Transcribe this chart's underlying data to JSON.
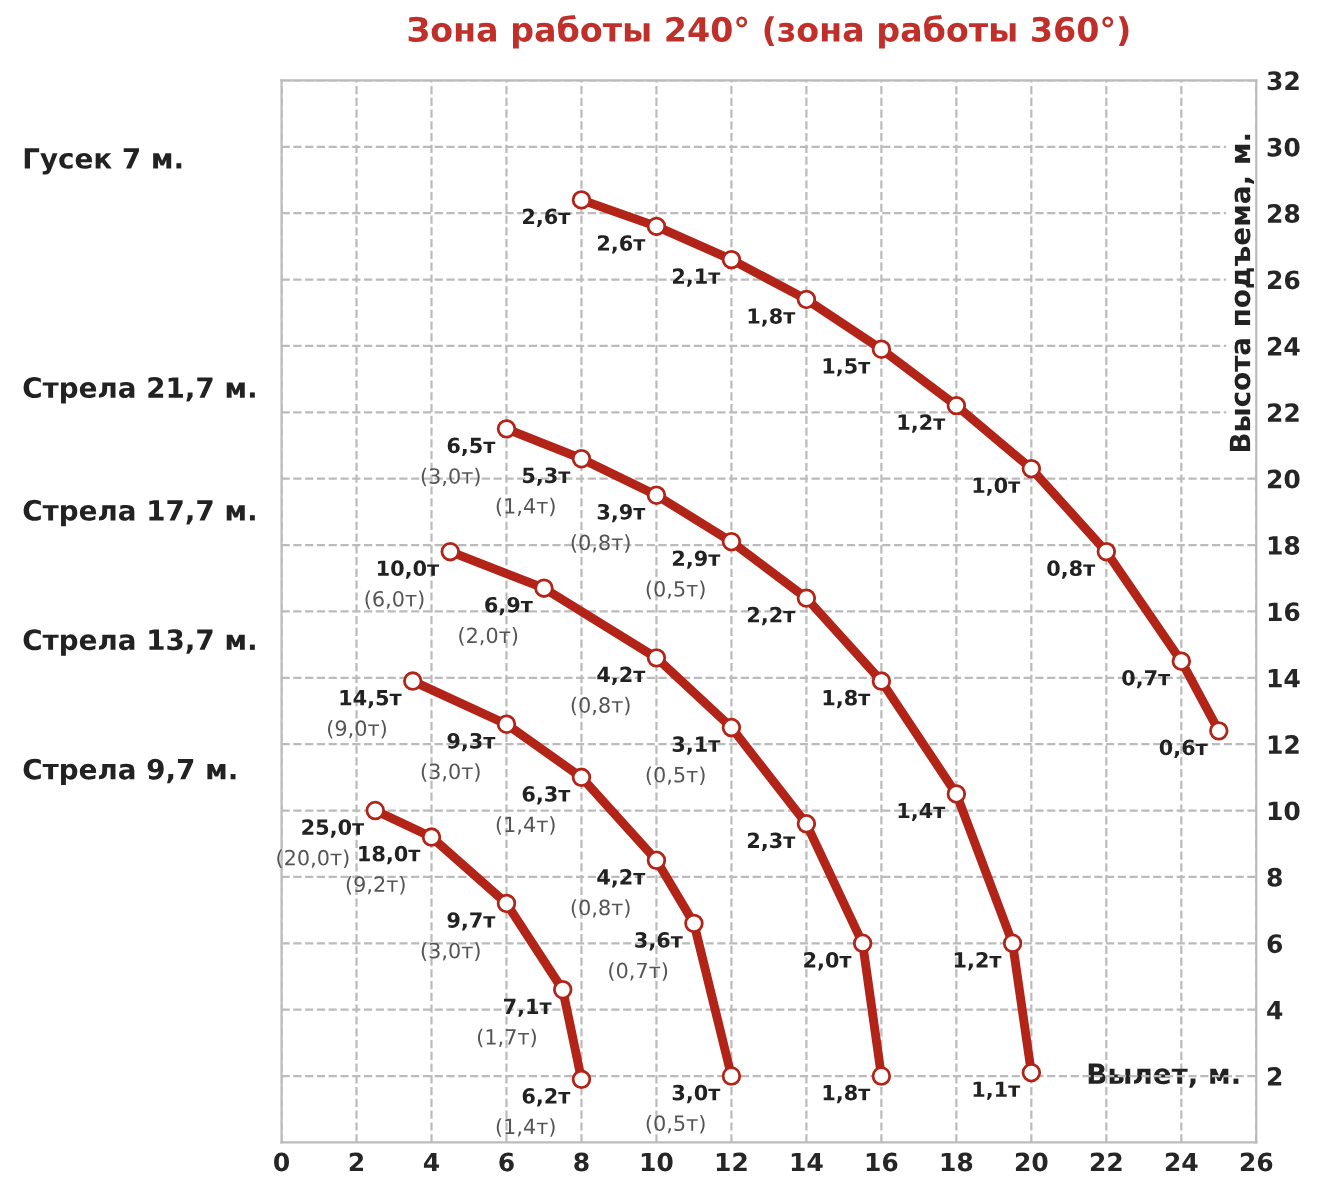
{
  "chart_data": {
    "type": "line",
    "title": "Зона работы 240° (зона работы 360°)",
    "xlabel": "Вылет, м.",
    "ylabel": "Высота подъема, м.",
    "xlim": [
      0,
      26
    ],
    "xticks": [
      0,
      2,
      4,
      6,
      8,
      10,
      12,
      14,
      16,
      18,
      20,
      22,
      24,
      26
    ],
    "ylim": [
      0,
      32
    ],
    "yticks": [
      2,
      4,
      6,
      8,
      10,
      12,
      14,
      16,
      18,
      20,
      22,
      24,
      26,
      28,
      30,
      32
    ],
    "grid": true,
    "marker": "circle",
    "line_style": "solid",
    "legend": false,
    "series": [
      {
        "color": "#b22418",
        "x": [
          8,
          10,
          12,
          14,
          16,
          18,
          20,
          22,
          24,
          25
        ],
        "values": [
          28.4,
          27.6,
          26.6,
          25.4,
          23.9,
          22.2,
          20.3,
          17.8,
          14.5,
          12.4
        ]
      },
      {
        "color": "#b22418",
        "x": [
          6,
          8,
          10,
          12,
          14,
          16,
          18,
          19.5,
          20
        ],
        "values": [
          21.5,
          20.6,
          19.5,
          18.1,
          16.4,
          13.9,
          10.5,
          6.0,
          2.1
        ]
      },
      {
        "color": "#b22418",
        "x": [
          4.5,
          7,
          10,
          12,
          14,
          15.5,
          16
        ],
        "values": [
          17.8,
          16.7,
          14.6,
          12.5,
          9.6,
          6.0,
          2.0
        ]
      },
      {
        "color": "#b22418",
        "x": [
          3.5,
          6,
          8,
          10,
          11,
          12
        ],
        "values": [
          13.9,
          12.6,
          11.0,
          8.5,
          6.6,
          2.0
        ]
      },
      {
        "color": "#b22418",
        "x": [
          2.5,
          4,
          6,
          7.5,
          8
        ],
        "values": [
          10.0,
          9.2,
          7.2,
          4.6,
          1.9
        ]
      }
    ],
    "annotations": [
      "Гусек 7 м.",
      "Стрела 21,7 м.",
      "Стрела 17,7 м.",
      "Стрела 13,7 м.",
      "Стрела 9,7 м.",
      {
        "text": "2,6т",
        "x": 8,
        "y": 28.4
      },
      {
        "text": "2,6т",
        "x": 10,
        "y": 27.6
      },
      {
        "text": "2,1т",
        "x": 12,
        "y": 26.6
      },
      {
        "text": "1,8т",
        "x": 14,
        "y": 25.4
      },
      {
        "text": "1,5т",
        "x": 16,
        "y": 23.9
      },
      {
        "text": "1,2т",
        "x": 18,
        "y": 22.2
      },
      {
        "text": "1,0т",
        "x": 20,
        "y": 20.3
      },
      {
        "text": "0,8т",
        "x": 22,
        "y": 17.8
      },
      {
        "text": "0,7т",
        "x": 24,
        "y": 14.5
      },
      {
        "text": "0,6т",
        "x": 25,
        "y": 12.4
      },
      {
        "text": "6,5т\n(3,0т)",
        "x": 6,
        "y": 21.5
      },
      {
        "text": "5,3т\n(1,4т)",
        "x": 8,
        "y": 20.6
      },
      {
        "text": "3,9т\n(0,8т)",
        "x": 10,
        "y": 19.5
      },
      {
        "text": "2,9т\n(0,5т)",
        "x": 12,
        "y": 18.1
      },
      {
        "text": "2,2т",
        "x": 14,
        "y": 16.4
      },
      {
        "text": "1,8т",
        "x": 16,
        "y": 13.9
      },
      {
        "text": "1,4т",
        "x": 18,
        "y": 10.5
      },
      {
        "text": "1,2т",
        "x": 19.5,
        "y": 6.0
      },
      {
        "text": "1,1т",
        "x": 20,
        "y": 2.1
      },
      {
        "text": "10,0т\n(6,0т)",
        "x": 4.5,
        "y": 17.8
      },
      {
        "text": "6,9т\n(2,0т)",
        "x": 7,
        "y": 16.7
      },
      {
        "text": "4,2т\n(0,8т)",
        "x": 10,
        "y": 14.6
      },
      {
        "text": "3,1т\n(0,5т)",
        "x": 12,
        "y": 12.5
      },
      {
        "text": "2,3т",
        "x": 14,
        "y": 9.6
      },
      {
        "text": "2,0т",
        "x": 15.5,
        "y": 6.0
      },
      {
        "text": "1,8т",
        "x": 16,
        "y": 2.0
      },
      {
        "text": "14,5т\n(9,0т)",
        "x": 3.5,
        "y": 13.9
      },
      {
        "text": "9,3т\n(3,0т)",
        "x": 6,
        "y": 12.6
      },
      {
        "text": "6,3т\n(1,4т)",
        "x": 8,
        "y": 11.0
      },
      {
        "text": "4,2т\n(0,8т)",
        "x": 10,
        "y": 8.5
      },
      {
        "text": "3,6т\n(0,7т)",
        "x": 11,
        "y": 6.6
      },
      {
        "text": "3,0т\n(0,5т)",
        "x": 12,
        "y": 2.0
      },
      {
        "text": "25,0т\n(20,0т)",
        "x": 2.5,
        "y": 10.0
      },
      {
        "text": "18,0т\n(9,2т)",
        "x": 4,
        "y": 9.2
      },
      {
        "text": "9,7т\n(3,0т)",
        "x": 6,
        "y": 7.2
      },
      {
        "text": "7,1т\n(1,7т)",
        "x": 7.5,
        "y": 4.6
      },
      {
        "text": "6,2т\n(1,4т)",
        "x": 8,
        "y": 1.9
      }
    ]
  }
}
